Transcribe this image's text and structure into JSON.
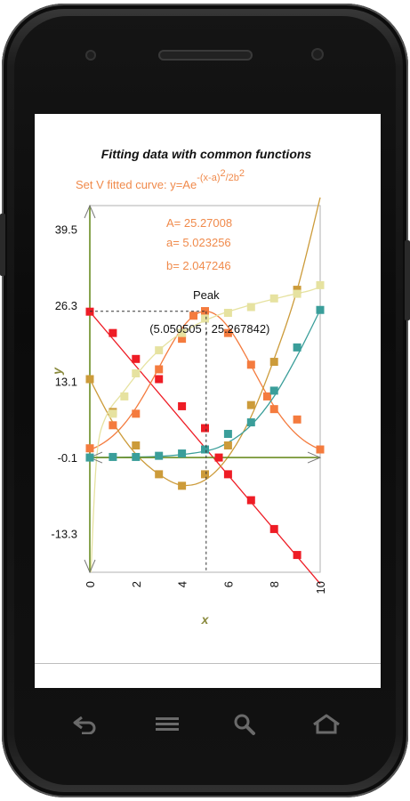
{
  "colors": {
    "background": "#ffffff",
    "axes": "#6b8e23",
    "grid_frame": "#b0b0b0",
    "annotation": "#111111"
  },
  "icons": {
    "back": "back-icon",
    "menu": "menu-icon",
    "search": "search-icon",
    "home": "home-icon"
  },
  "chart_data": {
    "type": "scatter",
    "title": "Fitting data with common functions",
    "subtitle": {
      "prefix": "Set V fitted curve: y=Ae",
      "exponent": "-(x-a)",
      "exp_power": "2",
      "exp_den": "/2b",
      "den_power": "2"
    },
    "params": [
      "A= 25.27008",
      "a= 5.023256",
      "b= 2.047246"
    ],
    "xlabel": "x",
    "ylabel": "y",
    "xlim": [
      0,
      10
    ],
    "ylim": [
      -20.0,
      43.6
    ],
    "xticks": [
      0,
      2,
      4,
      6,
      8,
      10
    ],
    "xtick_labels": [
      "0",
      "2",
      "4",
      "6",
      "8",
      "10"
    ],
    "yticks": [
      39.5,
      26.3,
      13.1,
      -0.1,
      -13.3
    ],
    "ytick_labels": [
      "39.5",
      "26.3",
      "13.1",
      "-0.1",
      "-13.3"
    ],
    "grid": false,
    "annotation": {
      "label": "Peak",
      "coords": "(5.050505 , 25.267842)",
      "x": 5.050505,
      "y": 25.267842
    },
    "series": [
      {
        "color": "#ee1c25",
        "points": [
          [
            0,
            25.2
          ],
          [
            1,
            21.5
          ],
          [
            2,
            17.0
          ],
          [
            3,
            13.5
          ],
          [
            4,
            8.8
          ],
          [
            5,
            5.0
          ],
          [
            5.6,
            -0.1
          ],
          [
            6,
            -3.0
          ],
          [
            7,
            -7.5
          ],
          [
            8,
            -12.5
          ],
          [
            9,
            -17.0
          ],
          [
            10,
            -22.0
          ]
        ],
        "curve": [
          [
            0,
            25.2
          ],
          [
            10,
            -22.0
          ]
        ]
      },
      {
        "color": "#f47b3e",
        "points": [
          [
            0,
            1.5
          ],
          [
            1,
            5.5
          ],
          [
            2,
            7.5
          ],
          [
            3,
            15.2
          ],
          [
            4,
            20.5
          ],
          [
            4.5,
            24.5
          ],
          [
            5,
            25.3
          ],
          [
            6,
            21.5
          ],
          [
            7,
            16.0
          ],
          [
            7.7,
            10.5
          ],
          [
            8,
            8.3
          ],
          [
            9,
            6.5
          ],
          [
            10,
            1.3
          ]
        ],
        "curve_fn": "gauss"
      },
      {
        "color": "#cc9b3a",
        "points": [
          [
            0,
            13.5
          ],
          [
            1,
            7.8
          ],
          [
            2,
            2.0
          ],
          [
            3,
            -3.0
          ],
          [
            4,
            -5.0
          ],
          [
            5,
            -3.0
          ],
          [
            6,
            2.0
          ],
          [
            7,
            9.0
          ],
          [
            8,
            16.5
          ],
          [
            9,
            29.0
          ],
          [
            10,
            45.0
          ]
        ],
        "curve": [
          [
            0,
            13.5
          ],
          [
            1,
            6.0
          ],
          [
            2,
            0.5
          ],
          [
            3,
            -3.0
          ],
          [
            4,
            -4.9
          ],
          [
            5,
            -4.0
          ],
          [
            6,
            0.0
          ],
          [
            7,
            7.0
          ],
          [
            8,
            17.0
          ],
          [
            9,
            29.0
          ],
          [
            10,
            45.0
          ]
        ]
      },
      {
        "color": "#3a9e9a",
        "points": [
          [
            0,
            -0.1
          ],
          [
            1,
            0.0
          ],
          [
            2,
            0.0
          ],
          [
            3,
            0.2
          ],
          [
            4,
            0.6
          ],
          [
            5,
            1.3
          ],
          [
            6,
            4.0
          ],
          [
            7,
            6.0
          ],
          [
            8,
            11.5
          ],
          [
            9,
            19.0
          ],
          [
            10,
            25.5
          ]
        ],
        "curve": [
          [
            0,
            -0.1
          ],
          [
            3,
            0.1
          ],
          [
            5,
            1.0
          ],
          [
            6,
            2.5
          ],
          [
            7,
            5.5
          ],
          [
            8,
            10.5
          ],
          [
            9,
            17.5
          ],
          [
            10,
            25.5
          ]
        ]
      },
      {
        "color": "#e6e2a0",
        "points": [
          [
            1,
            7.5
          ],
          [
            1.5,
            10.5
          ],
          [
            2,
            14.5
          ],
          [
            3,
            18.5
          ],
          [
            4,
            21.5
          ],
          [
            5,
            24.0
          ],
          [
            6,
            25.0
          ],
          [
            7,
            26.0
          ],
          [
            8,
            27.5
          ],
          [
            9,
            28.3
          ],
          [
            10,
            29.8
          ]
        ],
        "curve": [
          [
            0.05,
            -20
          ],
          [
            0.3,
            0
          ],
          [
            0.7,
            7.0
          ],
          [
            1.5,
            11.5
          ],
          [
            2.5,
            16.5
          ],
          [
            3.5,
            20.2
          ],
          [
            4.5,
            22.7
          ],
          [
            5.5,
            24.5
          ],
          [
            6.5,
            25.8
          ],
          [
            7.5,
            26.9
          ],
          [
            8.5,
            27.9
          ],
          [
            9.5,
            28.8
          ],
          [
            10,
            29.5
          ]
        ]
      }
    ]
  }
}
